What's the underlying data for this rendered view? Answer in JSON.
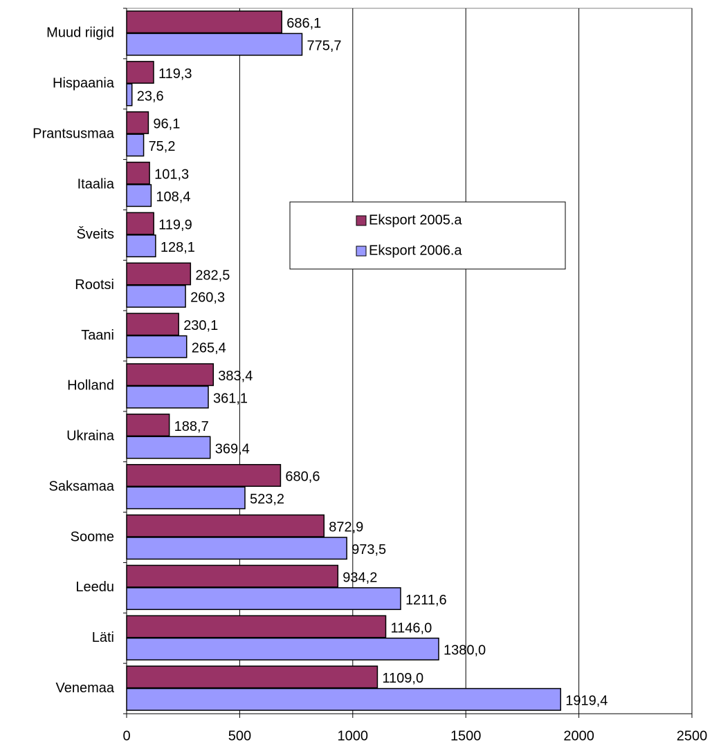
{
  "chart_data": {
    "type": "hbar",
    "categories": [
      "Muud riigid",
      "Hispaania",
      "Prantsusmaa",
      "Itaalia",
      "Šveits",
      "Rootsi",
      "Taani",
      "Holland",
      "Ukraina",
      "Saksamaa",
      "Soome",
      "Leedu",
      "Läti",
      "Venemaa"
    ],
    "series": [
      {
        "name": "Eksport 2005.a",
        "color": "#993366",
        "values": [
          686.1,
          119.3,
          96.1,
          101.3,
          119.9,
          282.5,
          230.1,
          383.4,
          188.7,
          680.6,
          872.9,
          934.2,
          1146.0,
          1109.0
        ],
        "value_labels": [
          "686,1",
          "119,3",
          "96,1",
          "101,3",
          "119,9",
          "282,5",
          "230,1",
          "383,4",
          "188,7",
          "680,6",
          "872,9",
          "934,2",
          "1146,0",
          "1109,0"
        ]
      },
      {
        "name": "Eksport 2006.a",
        "color": "#9999ff",
        "values": [
          775.7,
          23.6,
          75.2,
          108.4,
          128.1,
          260.3,
          265.4,
          361.1,
          369.4,
          523.2,
          973.5,
          1211.6,
          1380.0,
          1919.4
        ],
        "value_labels": [
          "775,7",
          "23,6",
          "75,2",
          "108,4",
          "128,1",
          "260,3",
          "265,4",
          "361,1",
          "369,4",
          "523,2",
          "973,5",
          "1211,6",
          "1380,0",
          "1919,4"
        ]
      }
    ],
    "xlim": [
      0,
      2500
    ],
    "xticks": [
      0,
      500,
      1000,
      1500,
      2000,
      2500
    ],
    "grid": true,
    "legend": "center"
  }
}
